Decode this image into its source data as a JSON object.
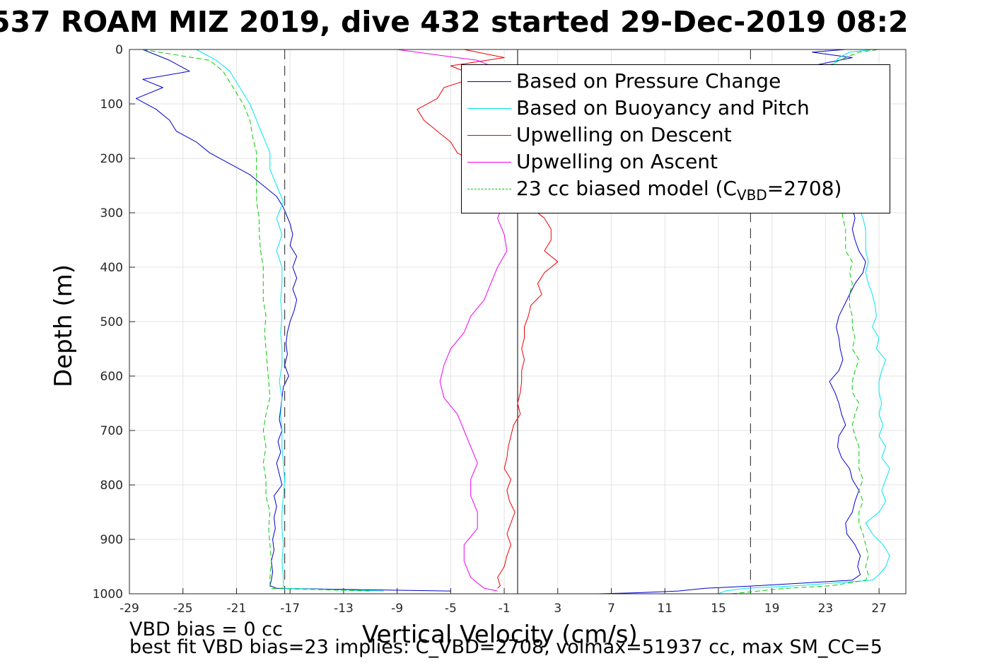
{
  "title": "537 ROAM MIZ 2019, dive 432 started 29-Dec-2019 08:2",
  "notes": {
    "line1": "VBD bias = 0 cc",
    "line2": "best fit VBD bias=23 implies: C_VBD=2708, volmax=51937 cc, max SM_CC=5"
  },
  "chart_data": {
    "type": "line",
    "xlabel": "Vertical Velocity (cm/s)",
    "ylabel": "Depth (m)",
    "xlim": [
      -29,
      29
    ],
    "ylim": [
      1000,
      0
    ],
    "y_reversed": true,
    "grid": true,
    "x_ticks": [
      "-29",
      "-25",
      "-21",
      "-17",
      "-13",
      "-9",
      "-5",
      "-1",
      "3",
      "7",
      "11",
      "15",
      "19",
      "23",
      "27"
    ],
    "y_ticks": [
      "0",
      "100",
      "200",
      "300",
      "400",
      "500",
      "600",
      "700",
      "800",
      "900",
      "1000"
    ],
    "reference_lines": {
      "dashed_vertical_x": [
        -17.4,
        17.4
      ],
      "solid_vertical_x": 0
    },
    "legend": {
      "position": "top-right",
      "entries": [
        {
          "label": "Based on Pressure Change",
          "color": "#0000cc",
          "style": "solid"
        },
        {
          "label": "Based on Buoyancy and Pitch",
          "color": "#00e5ee",
          "style": "solid"
        },
        {
          "label": "Upwelling on Descent",
          "color": "#ee0000",
          "style": "solid"
        },
        {
          "label": "Upwelling on Ascent",
          "color": "#ee00ee",
          "style": "solid"
        },
        {
          "label_pre": "23 cc biased model (C",
          "label_sub": "VBD",
          "label_post": "=2708)",
          "color": "#00cc00",
          "style": "dashed"
        }
      ]
    },
    "series": [
      {
        "name": "Based on Pressure Change",
        "color": "#0000cc",
        "descent": {
          "depth": [
            0,
            20,
            40,
            55,
            70,
            90,
            110,
            130,
            150,
            170,
            190,
            210,
            230,
            250,
            270,
            290,
            320,
            340,
            360,
            380,
            400,
            420,
            440,
            460,
            480,
            500,
            520,
            540,
            560,
            580,
            600,
            620,
            640,
            660,
            680,
            700,
            720,
            740,
            760,
            780,
            800,
            820,
            840,
            860,
            880,
            900,
            920,
            940,
            960,
            975,
            985,
            990,
            995
          ],
          "velocity": [
            -28.0,
            -26.0,
            -24.5,
            -28.0,
            -26.5,
            -28.5,
            -27.0,
            -26.0,
            -25.5,
            -24.0,
            -23.0,
            -21.5,
            -20.0,
            -19.0,
            -18.0,
            -17.5,
            -17.0,
            -16.8,
            -17.0,
            -16.5,
            -16.8,
            -16.5,
            -16.8,
            -16.5,
            -16.7,
            -17.0,
            -17.2,
            -17.3,
            -17.2,
            -17.4,
            -17.1,
            -17.5,
            -17.6,
            -17.7,
            -17.8,
            -17.6,
            -17.9,
            -17.7,
            -18.0,
            -17.8,
            -17.6,
            -18.2,
            -18.0,
            -18.2,
            -18.1,
            -18.3,
            -18.2,
            -18.4,
            -18.3,
            -18.4,
            -18.5,
            -18.0,
            -5.0
          ]
        },
        "ascent": {
          "depth": [
            1000,
            998,
            995,
            990,
            985,
            975,
            965,
            950,
            930,
            910,
            890,
            870,
            850,
            830,
            810,
            790,
            770,
            750,
            730,
            710,
            690,
            670,
            650,
            630,
            610,
            590,
            570,
            550,
            530,
            510,
            490,
            470,
            450,
            430,
            410,
            390,
            370,
            350,
            330,
            310,
            290,
            270,
            250,
            230,
            210,
            190,
            170,
            150,
            130,
            110,
            90,
            70,
            50,
            40,
            30,
            25,
            20,
            15,
            10,
            5,
            0
          ],
          "velocity": [
            6.0,
            9.0,
            12.0,
            14.0,
            18.0,
            25.0,
            25.6,
            25.4,
            25.6,
            25.2,
            24.6,
            24.5,
            25.0,
            25.2,
            25.5,
            25.0,
            24.8,
            24.2,
            23.9,
            24.0,
            24.5,
            24.2,
            24.0,
            23.7,
            23.3,
            24.0,
            24.3,
            24.1,
            24.0,
            23.8,
            24.0,
            24.4,
            24.8,
            25.2,
            25.8,
            26.0,
            25.5,
            25.2,
            25.0,
            25.2,
            25.0,
            24.8,
            24.9,
            24.9,
            25.0,
            24.8,
            24.7,
            24.6,
            24.5,
            24.6,
            24.4,
            24.6,
            24.0,
            21.0,
            22.0,
            23.0,
            24.0,
            25.0,
            23.5,
            22.0,
            24.5
          ]
        }
      },
      {
        "name": "Based on Buoyancy and Pitch",
        "color": "#00e5ee",
        "descent": {
          "depth": [
            0,
            20,
            40,
            60,
            80,
            100,
            130,
            160,
            190,
            220,
            250,
            280,
            310,
            340,
            370,
            400,
            430,
            460,
            490,
            520,
            550,
            580,
            610,
            640,
            670,
            700,
            730,
            760,
            790,
            820,
            850,
            880,
            910,
            940,
            970,
            990,
            995
          ],
          "velocity": [
            -24.0,
            -22.5,
            -21.5,
            -21.0,
            -20.5,
            -20.0,
            -19.5,
            -19.0,
            -18.5,
            -18.5,
            -18.0,
            -17.5,
            -18.0,
            -17.6,
            -18.0,
            -17.6,
            -17.6,
            -17.7,
            -17.6,
            -17.7,
            -17.6,
            -17.6,
            -17.8,
            -17.6,
            -17.7,
            -17.6,
            -17.6,
            -17.5,
            -17.4,
            -17.5,
            -17.6,
            -17.6,
            -17.5,
            -17.6,
            -17.5,
            -17.5,
            -10.0
          ]
        },
        "ascent": {
          "depth": [
            1000,
            995,
            990,
            985,
            975,
            965,
            950,
            930,
            910,
            890,
            870,
            850,
            830,
            810,
            790,
            770,
            750,
            730,
            710,
            690,
            670,
            650,
            630,
            610,
            590,
            570,
            550,
            530,
            510,
            490,
            470,
            450,
            430,
            410,
            390,
            370,
            350,
            330,
            310,
            290,
            270,
            250,
            230,
            210,
            190,
            170,
            150,
            130,
            110,
            90,
            70,
            50,
            30,
            15,
            5,
            0
          ],
          "velocity": [
            15.0,
            15.5,
            17.0,
            21.0,
            26.5,
            27.0,
            27.5,
            27.8,
            27.3,
            26.5,
            26.0,
            27.0,
            27.5,
            27.2,
            27.5,
            27.8,
            27.2,
            27.5,
            27.0,
            27.3,
            27.0,
            27.2,
            27.0,
            27.0,
            27.2,
            27.5,
            26.8,
            27.0,
            26.5,
            26.8,
            26.7,
            26.5,
            26.2,
            26.0,
            26.2,
            26.0,
            26.0,
            26.0,
            25.8,
            25.5,
            25.5,
            25.5,
            25.2,
            25.3,
            25.0,
            25.2,
            25.0,
            24.8,
            24.6,
            24.5,
            24.2,
            23.8,
            23.5,
            24.0,
            24.8,
            26.5
          ]
        }
      },
      {
        "name": "Upwelling on Descent",
        "color": "#ee0000",
        "depth": [
          0,
          15,
          30,
          50,
          70,
          90,
          110,
          130,
          150,
          170,
          190,
          210,
          230,
          250,
          270,
          290,
          310,
          330,
          350,
          370,
          390,
          410,
          430,
          450,
          470,
          490,
          510,
          530,
          550,
          570,
          590,
          610,
          630,
          650,
          670,
          690,
          710,
          730,
          750,
          770,
          790,
          810,
          830,
          850,
          870,
          890,
          910,
          930,
          950,
          970,
          985,
          990
        ],
        "velocity": [
          -4.0,
          -1.0,
          -5.0,
          -3.0,
          -5.5,
          -6.0,
          -7.5,
          -7.0,
          -6.0,
          -5.0,
          -4.5,
          -3.0,
          -2.0,
          -1.0,
          0.0,
          1.0,
          2.0,
          2.5,
          2.5,
          2.0,
          3.0,
          2.0,
          1.5,
          1.8,
          1.0,
          0.8,
          0.5,
          0.5,
          0.3,
          0.5,
          0.3,
          0.3,
          0.2,
          0.0,
          0.2,
          -0.3,
          -0.5,
          -0.7,
          -0.8,
          -1.0,
          -0.5,
          -0.8,
          -0.6,
          -0.2,
          -0.5,
          -0.8,
          -0.5,
          -0.8,
          -1.0,
          -1.5,
          -1.3,
          -1.5
        ]
      },
      {
        "name": "Upwelling on Ascent",
        "color": "#ee00ee",
        "depth": [
          0,
          20,
          40,
          60,
          80,
          100,
          130,
          160,
          190,
          220,
          250,
          280,
          310,
          340,
          370,
          400,
          430,
          460,
          490,
          520,
          550,
          580,
          610,
          640,
          670,
          700,
          730,
          760,
          790,
          820,
          850,
          880,
          910,
          940,
          970,
          990,
          995
        ],
        "velocity": [
          -9.0,
          -3.0,
          -1.0,
          -2.5,
          -1.5,
          -2.0,
          -1.5,
          -1.0,
          -1.2,
          -1.0,
          -1.0,
          -1.0,
          -1.5,
          -1.0,
          -0.8,
          -1.5,
          -2.0,
          -2.5,
          -3.5,
          -4.0,
          -5.0,
          -5.5,
          -5.8,
          -5.5,
          -4.5,
          -4.0,
          -3.5,
          -3.0,
          -3.5,
          -3.5,
          -3.0,
          -3.0,
          -4.0,
          -4.0,
          -3.5,
          -2.5,
          -1.5
        ]
      },
      {
        "name": "23 cc biased model",
        "color": "#00cc00",
        "style": "dashed",
        "descent": {
          "depth": [
            0,
            20,
            40,
            60,
            80,
            100,
            130,
            160,
            190,
            220,
            250,
            280,
            310,
            340,
            370,
            400,
            430,
            460,
            490,
            520,
            550,
            580,
            610,
            640,
            670,
            700,
            730,
            760,
            790,
            820,
            850,
            880,
            910,
            940,
            970,
            990,
            995
          ],
          "velocity": [
            -28.0,
            -23.0,
            -22.0,
            -21.5,
            -21.0,
            -20.5,
            -20.0,
            -19.8,
            -19.5,
            -19.5,
            -19.5,
            -19.5,
            -19.3,
            -19.3,
            -19.2,
            -19.0,
            -19.0,
            -19.0,
            -18.8,
            -18.9,
            -18.8,
            -18.7,
            -18.6,
            -18.5,
            -18.8,
            -19.0,
            -18.8,
            -19.0,
            -18.8,
            -18.8,
            -18.5,
            -18.6,
            -18.5,
            -18.4,
            -18.5,
            -18.5,
            -11.0
          ]
        },
        "ascent": {
          "depth": [
            1000,
            995,
            990,
            985,
            975,
            965,
            950,
            930,
            910,
            890,
            870,
            850,
            830,
            810,
            790,
            770,
            750,
            730,
            710,
            690,
            670,
            650,
            630,
            610,
            590,
            570,
            550,
            530,
            510,
            490,
            470,
            450,
            430,
            410,
            390,
            370,
            350,
            330,
            310,
            290,
            270,
            250,
            230,
            210,
            190,
            170,
            150,
            130,
            110,
            90,
            70,
            50,
            30,
            15,
            5,
            0
          ],
          "velocity": [
            16.0,
            18.0,
            20.0,
            23.5,
            26.0,
            26.2,
            26.0,
            26.2,
            26.0,
            25.8,
            25.5,
            25.5,
            25.8,
            25.5,
            25.8,
            25.5,
            25.5,
            25.5,
            25.2,
            25.0,
            25.2,
            25.5,
            25.0,
            25.0,
            25.2,
            25.5,
            25.0,
            25.2,
            25.0,
            25.0,
            24.8,
            24.8,
            25.0,
            24.8,
            25.0,
            24.5,
            24.5,
            24.5,
            24.3,
            24.2,
            24.0,
            24.0,
            23.8,
            23.8,
            23.5,
            23.6,
            23.5,
            23.4,
            23.3,
            23.2,
            23.0,
            23.0,
            23.2,
            24.5,
            25.5,
            27.0
          ]
        }
      }
    ]
  }
}
